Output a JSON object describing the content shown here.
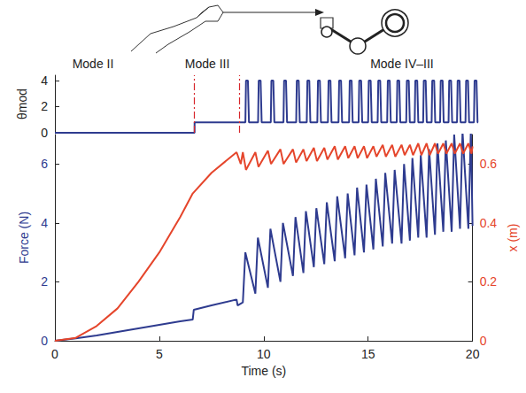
{
  "chart_data": [
    {
      "type": "line",
      "ylabel": "θmod",
      "xlim": [
        0,
        20
      ],
      "ylim": [
        0,
        4.4
      ],
      "yticks": [
        0,
        2,
        4
      ],
      "tick_labels": "y",
      "annotations": [
        {
          "text": "Mode II",
          "x": 1.8
        },
        {
          "text": "Mode III",
          "x": 7.2
        },
        {
          "text": "Mode IV–III",
          "x": 16.4
        }
      ],
      "mode_boundaries": [
        6.6,
        8.7
      ],
      "series": [
        {
          "color": "#2e3b8f",
          "values": [
            [
              0,
              0
            ],
            [
              6.6,
              0
            ],
            [
              6.6,
              0.8
            ],
            [
              9.0,
              0.8
            ],
            [
              9.03,
              4
            ],
            [
              9.12,
              4
            ],
            [
              9.17,
              0.8
            ],
            [
              9.6,
              0.8
            ],
            [
              9.63,
              4
            ],
            [
              9.72,
              4
            ],
            [
              9.77,
              0.8
            ],
            [
              10.2,
              0.8
            ],
            [
              10.23,
              4
            ],
            [
              10.32,
              4
            ],
            [
              10.37,
              0.8
            ],
            [
              10.8,
              0.8
            ],
            [
              10.83,
              4
            ],
            [
              10.92,
              4
            ],
            [
              10.97,
              0.8
            ],
            [
              11.4,
              0.8
            ],
            [
              11.43,
              4
            ],
            [
              11.52,
              4
            ],
            [
              11.57,
              0.8
            ],
            [
              11.9,
              0.8
            ],
            [
              11.93,
              4
            ],
            [
              12.02,
              4
            ],
            [
              12.07,
              0.8
            ],
            [
              12.4,
              0.8
            ],
            [
              12.43,
              4
            ],
            [
              12.52,
              4
            ],
            [
              12.57,
              0.8
            ],
            [
              12.9,
              0.8
            ],
            [
              12.93,
              4
            ],
            [
              13.02,
              4
            ],
            [
              13.07,
              0.8
            ],
            [
              13.4,
              0.8
            ],
            [
              13.43,
              4
            ],
            [
              13.52,
              4
            ],
            [
              13.57,
              0.8
            ],
            [
              13.9,
              0.8
            ],
            [
              13.93,
              4
            ],
            [
              14.02,
              4
            ],
            [
              14.07,
              0.8
            ],
            [
              14.35,
              0.8
            ],
            [
              14.38,
              4
            ],
            [
              14.47,
              4
            ],
            [
              14.52,
              0.8
            ],
            [
              14.8,
              0.8
            ],
            [
              14.83,
              4
            ],
            [
              14.92,
              4
            ],
            [
              14.97,
              0.8
            ],
            [
              15.25,
              0.8
            ],
            [
              15.28,
              4
            ],
            [
              15.37,
              4
            ],
            [
              15.42,
              0.8
            ],
            [
              15.7,
              0.8
            ],
            [
              15.73,
              4
            ],
            [
              15.82,
              4
            ],
            [
              15.87,
              0.8
            ],
            [
              16.15,
              0.8
            ],
            [
              16.18,
              4
            ],
            [
              16.27,
              4
            ],
            [
              16.32,
              0.8
            ],
            [
              16.6,
              0.8
            ],
            [
              16.63,
              4
            ],
            [
              16.72,
              4
            ],
            [
              16.77,
              0.8
            ],
            [
              17.0,
              0.8
            ],
            [
              17.03,
              4
            ],
            [
              17.12,
              4
            ],
            [
              17.17,
              0.8
            ],
            [
              17.4,
              0.8
            ],
            [
              17.43,
              4
            ],
            [
              17.52,
              4
            ],
            [
              17.57,
              0.8
            ],
            [
              17.8,
              0.8
            ],
            [
              17.83,
              4
            ],
            [
              17.92,
              4
            ],
            [
              17.97,
              0.8
            ],
            [
              18.2,
              0.8
            ],
            [
              18.23,
              4
            ],
            [
              18.32,
              4
            ],
            [
              18.37,
              0.8
            ],
            [
              18.6,
              0.8
            ],
            [
              18.63,
              4
            ],
            [
              18.72,
              4
            ],
            [
              18.77,
              0.8
            ],
            [
              19.0,
              0.8
            ],
            [
              19.03,
              4
            ],
            [
              19.12,
              4
            ],
            [
              19.17,
              0.8
            ],
            [
              19.4,
              0.8
            ],
            [
              19.43,
              4
            ],
            [
              19.52,
              4
            ],
            [
              19.57,
              0.8
            ],
            [
              19.8,
              0.8
            ],
            [
              19.83,
              4
            ],
            [
              19.92,
              4
            ],
            [
              19.97,
              0.8
            ],
            [
              20,
              0.8
            ]
          ]
        }
      ]
    },
    {
      "type": "line",
      "xlabel": "Time (s)",
      "ylabel": "Force (N)",
      "y2label": "x (m)",
      "xlim": [
        0,
        20
      ],
      "xticks": [
        0,
        5,
        10,
        15,
        20
      ],
      "ylim": [
        0,
        7
      ],
      "yticks": [
        0,
        2,
        4,
        6
      ],
      "y2lim": [
        0,
        0.7
      ],
      "y2ticks": [
        0,
        0.2,
        0.4,
        0.6
      ],
      "series": [
        {
          "color": "#2e3b8f",
          "values": [
            [
              0,
              0
            ],
            [
              1,
              0.08
            ],
            [
              2,
              0.18
            ],
            [
              3,
              0.3
            ],
            [
              4,
              0.42
            ],
            [
              5,
              0.54
            ],
            [
              6,
              0.66
            ],
            [
              6.6,
              0.72
            ],
            [
              6.65,
              1.05
            ],
            [
              7.5,
              1.2
            ],
            [
              8.7,
              1.4
            ],
            [
              8.75,
              1.2
            ],
            [
              9.0,
              1.3
            ],
            [
              9.12,
              3.0
            ],
            [
              9.6,
              1.6
            ],
            [
              9.72,
              3.5
            ],
            [
              10.2,
              1.8
            ],
            [
              10.32,
              3.8
            ],
            [
              10.8,
              2.0
            ],
            [
              10.92,
              4.0
            ],
            [
              11.4,
              2.2
            ],
            [
              11.52,
              4.2
            ],
            [
              11.9,
              2.3
            ],
            [
              12.02,
              4.4
            ],
            [
              12.4,
              2.5
            ],
            [
              12.52,
              4.5
            ],
            [
              12.9,
              2.6
            ],
            [
              13.02,
              4.7
            ],
            [
              13.4,
              2.7
            ],
            [
              13.52,
              4.9
            ],
            [
              13.9,
              2.8
            ],
            [
              14.02,
              5.0
            ],
            [
              14.35,
              2.9
            ],
            [
              14.47,
              5.2
            ],
            [
              14.8,
              3.0
            ],
            [
              14.92,
              5.3
            ],
            [
              15.25,
              3.1
            ],
            [
              15.37,
              5.5
            ],
            [
              15.7,
              3.2
            ],
            [
              15.82,
              5.7
            ],
            [
              16.15,
              3.3
            ],
            [
              16.27,
              5.8
            ],
            [
              16.6,
              3.3
            ],
            [
              16.72,
              6.0
            ],
            [
              17.0,
              3.4
            ],
            [
              17.12,
              6.2
            ],
            [
              17.4,
              3.5
            ],
            [
              17.52,
              6.3
            ],
            [
              17.8,
              3.5
            ],
            [
              17.92,
              6.5
            ],
            [
              18.2,
              3.6
            ],
            [
              18.32,
              6.7
            ],
            [
              18.6,
              3.7
            ],
            [
              18.72,
              6.8
            ],
            [
              19.0,
              3.7
            ],
            [
              19.12,
              7.0
            ],
            [
              19.4,
              3.8
            ],
            [
              19.52,
              7.1
            ],
            [
              19.8,
              3.8
            ],
            [
              19.92,
              7.2
            ],
            [
              20,
              3.9
            ]
          ]
        },
        {
          "color": "#e5452b",
          "axis": "y2",
          "values": [
            [
              0,
              0
            ],
            [
              1,
              0.01
            ],
            [
              2,
              0.05
            ],
            [
              3,
              0.11
            ],
            [
              4,
              0.2
            ],
            [
              5,
              0.3
            ],
            [
              6,
              0.42
            ],
            [
              6.6,
              0.5
            ],
            [
              7.5,
              0.57
            ],
            [
              8.7,
              0.64
            ],
            [
              8.9,
              0.6
            ],
            [
              9.0,
              0.64
            ],
            [
              9.15,
              0.58
            ],
            [
              9.6,
              0.64
            ],
            [
              9.75,
              0.59
            ],
            [
              10.2,
              0.645
            ],
            [
              10.35,
              0.6
            ],
            [
              10.8,
              0.65
            ],
            [
              10.95,
              0.6
            ],
            [
              11.4,
              0.65
            ],
            [
              11.55,
              0.605
            ],
            [
              11.9,
              0.65
            ],
            [
              12.05,
              0.61
            ],
            [
              12.4,
              0.655
            ],
            [
              12.55,
              0.61
            ],
            [
              12.9,
              0.655
            ],
            [
              13.05,
              0.615
            ],
            [
              13.4,
              0.66
            ],
            [
              13.55,
              0.615
            ],
            [
              13.9,
              0.66
            ],
            [
              14.05,
              0.62
            ],
            [
              14.35,
              0.66
            ],
            [
              14.5,
              0.62
            ],
            [
              14.8,
              0.66
            ],
            [
              14.95,
              0.62
            ],
            [
              15.25,
              0.66
            ],
            [
              15.4,
              0.625
            ],
            [
              15.7,
              0.665
            ],
            [
              15.85,
              0.625
            ],
            [
              16.15,
              0.665
            ],
            [
              16.3,
              0.625
            ],
            [
              16.6,
              0.665
            ],
            [
              16.75,
              0.63
            ],
            [
              17.0,
              0.665
            ],
            [
              17.15,
              0.63
            ],
            [
              17.4,
              0.67
            ],
            [
              17.55,
              0.63
            ],
            [
              17.8,
              0.67
            ],
            [
              17.95,
              0.63
            ],
            [
              18.2,
              0.67
            ],
            [
              18.35,
              0.635
            ],
            [
              18.6,
              0.67
            ],
            [
              18.75,
              0.635
            ],
            [
              19.0,
              0.67
            ],
            [
              19.15,
              0.635
            ],
            [
              19.4,
              0.67
            ],
            [
              19.55,
              0.635
            ],
            [
              19.8,
              0.67
            ],
            [
              19.95,
              0.635
            ],
            [
              20,
              0.66
            ]
          ]
        }
      ]
    }
  ]
}
